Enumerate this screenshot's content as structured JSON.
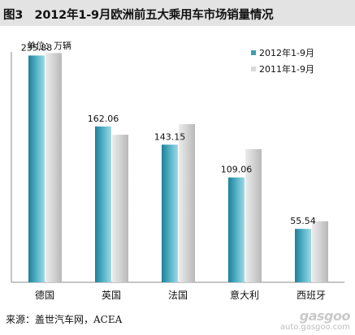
{
  "title": "图3　2012年1-9月欧洲前五大乘用车市场销量情况",
  "unit_label": "单位：万辆",
  "source": "来源：盖世汽车网，ACEA",
  "watermark": {
    "logo": "gasgoo",
    "url": "auto.gasgoo.com"
  },
  "chart_data": {
    "type": "bar",
    "categories": [
      "德国",
      "英国",
      "法国",
      "意大利",
      "西班牙"
    ],
    "series": [
      {
        "name": "2012年1-9月",
        "values": [
          235.88,
          162.06,
          143.15,
          109.06,
          55.54
        ],
        "color": "#3f9db3"
      },
      {
        "name": "2011年1-9月",
        "values": [
          238.5,
          153.5,
          164.5,
          138.5,
          63.5
        ],
        "color": "#d4d4d4"
      }
    ],
    "data_labels": [
      "235.88",
      "162.06",
      "143.15",
      "109.06",
      "55.54"
    ],
    "ylim": [
      0,
      270
    ],
    "legend_position": "top-right",
    "grid": false
  }
}
